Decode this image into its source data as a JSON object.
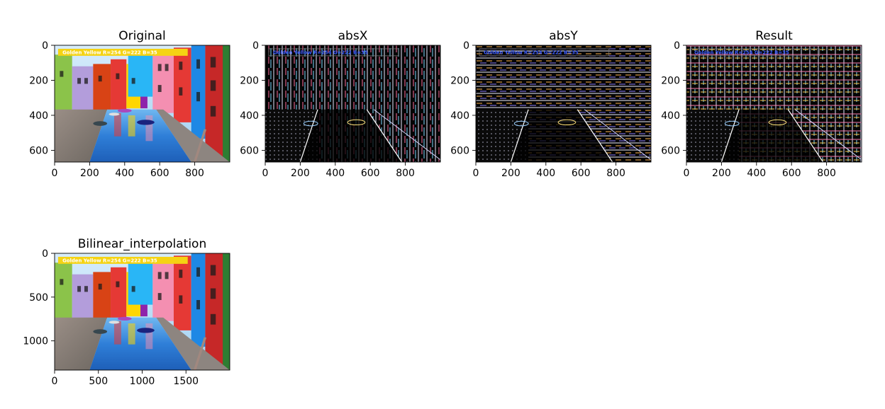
{
  "chart_data": [
    {
      "type": "image",
      "id": "original",
      "title": "Original",
      "render": "color",
      "overlay_text": "Golden Yellow R=254 G=222 B=35",
      "overlay_color": "#f5d313",
      "xlim": [
        0,
        1000
      ],
      "ylim": [
        0,
        667
      ],
      "xticks": [
        0,
        200,
        400,
        600,
        800
      ],
      "yticks": [
        0,
        200,
        400,
        600
      ]
    },
    {
      "type": "image",
      "id": "absx",
      "title": "absX",
      "render": "edges",
      "overlay_text": "Golden Yellow R=254 G=222 B=35",
      "overlay_color": "#3a5cff",
      "xlim": [
        0,
        1000
      ],
      "ylim": [
        0,
        667
      ],
      "xticks": [
        0,
        200,
        400,
        600,
        800
      ],
      "yticks": [
        0,
        200,
        400,
        600
      ]
    },
    {
      "type": "image",
      "id": "absy",
      "title": "absY",
      "render": "edges",
      "overlay_text": "Golden Yellow R=254 G=222 B=35",
      "overlay_color": "#3a5cff",
      "xlim": [
        0,
        1000
      ],
      "ylim": [
        0,
        667
      ],
      "xticks": [
        0,
        200,
        400,
        600,
        800
      ],
      "yticks": [
        0,
        200,
        400,
        600
      ]
    },
    {
      "type": "image",
      "id": "result",
      "title": "Result",
      "render": "edges",
      "overlay_text": "Golden Yellow R=254 G=222 B=35",
      "overlay_color": "#3a5cff",
      "xlim": [
        0,
        1000
      ],
      "ylim": [
        0,
        667
      ],
      "xticks": [
        0,
        200,
        400,
        600,
        800
      ],
      "yticks": [
        0,
        200,
        400,
        600
      ]
    },
    {
      "type": "image",
      "id": "bilinear",
      "title": "Bilinear_interpolation",
      "render": "color",
      "overlay_text": "Golden Yellow R=254 G=222 B=35",
      "overlay_color": "#f5d313",
      "xlim": [
        0,
        2000
      ],
      "ylim": [
        0,
        1334
      ],
      "xticks": [
        0,
        500,
        1000,
        1500
      ],
      "yticks": [
        0,
        500,
        1000
      ]
    }
  ]
}
